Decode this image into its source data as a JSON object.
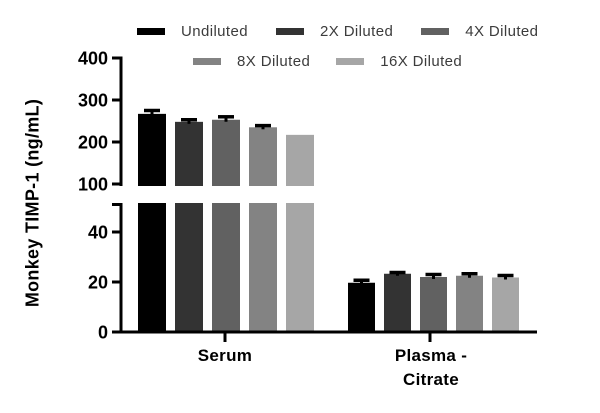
{
  "chart_data": {
    "type": "bar",
    "title": "",
    "ylabel": "Monkey TIMP-1 (ng/mL)",
    "categories": [
      "Serum",
      "Plasma - Citrate"
    ],
    "categories_display": [
      "Serum",
      "Plasma -\nCitrate"
    ],
    "series": [
      {
        "name": "Undiluted",
        "color": "#000000",
        "values": [
          267,
          19.7
        ],
        "errors": [
          8,
          1.0
        ]
      },
      {
        "name": "2X Diluted",
        "color": "#333333",
        "values": [
          248,
          23.3
        ],
        "errors": [
          5,
          0.5
        ]
      },
      {
        "name": "4X Diluted",
        "color": "#616161",
        "values": [
          253,
          22.0
        ],
        "errors": [
          7,
          1.0
        ]
      },
      {
        "name": "8X Diluted",
        "color": "#838383",
        "values": [
          235,
          22.5
        ],
        "errors": [
          4,
          0.8
        ]
      },
      {
        "name": "16X Diluted",
        "color": "#a6a6a6",
        "values": [
          217,
          21.8
        ],
        "errors": [
          0,
          0.8
        ]
      }
    ],
    "y_axis": {
      "upper_ticks": [
        100,
        200,
        300,
        400
      ],
      "lower_ticks": [
        0,
        20,
        40
      ],
      "axis_break": true,
      "upper_range": [
        100,
        400
      ],
      "lower_range": [
        0,
        50
      ]
    },
    "legend_position": "top",
    "grid": false,
    "axis_color": "#000000",
    "error_bar_color": "#000000"
  }
}
